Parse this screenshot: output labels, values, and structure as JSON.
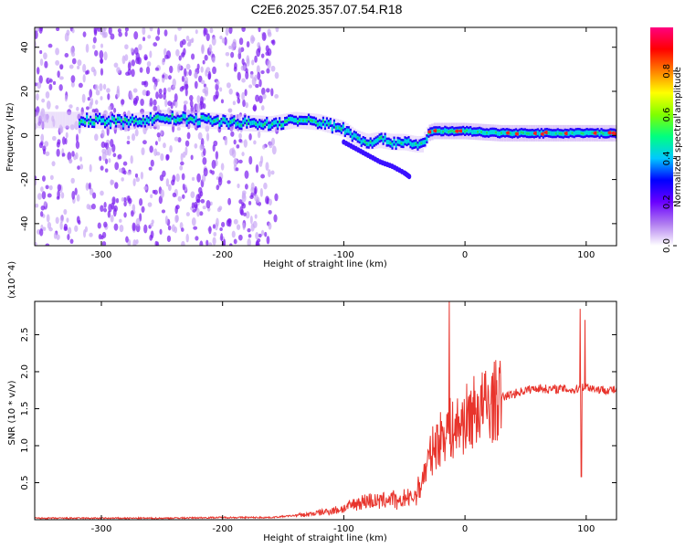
{
  "title": "C2E6.2025.357.07.54.R18",
  "chart_data": [
    {
      "type": "heatmap",
      "xlabel": "Height of straight line (km)",
      "ylabel": "Frequency (Hz)",
      "xlim": [
        -355,
        125
      ],
      "ylim": [
        -50,
        49
      ],
      "xticks": [
        -300,
        -200,
        -100,
        0,
        100
      ],
      "yticks": [
        -40,
        -20,
        0,
        20,
        40
      ],
      "colorbar": {
        "label": "Normalized spectral amplitude",
        "range": [
          0,
          1
        ],
        "ticks": [
          "0.0",
          "0.2",
          "0.4",
          "0.6",
          "0.8"
        ],
        "colors": [
          "#ffffff",
          "#b07cf0",
          "#6a00ff",
          "#0000ff",
          "#00c8ff",
          "#00ff80",
          "#80ff00",
          "#ffff00",
          "#ff8000",
          "#ff0000",
          "#ff0080"
        ]
      },
      "ridge": {
        "x": [
          -310,
          -280,
          -250,
          -220,
          -190,
          -160,
          -140,
          -120,
          -100,
          -90,
          -80,
          -70,
          -60,
          -50,
          -40,
          -35,
          -30,
          -25,
          0,
          30,
          60,
          90,
          125
        ],
        "y": [
          7,
          6,
          8,
          7,
          6,
          5,
          7,
          6,
          3,
          -1,
          -3,
          -2,
          -3,
          -3,
          -4,
          -4,
          1,
          2,
          2,
          1,
          1,
          1,
          1
        ]
      },
      "branch": {
        "x": [
          -100,
          -90,
          -80,
          -70,
          -60,
          -50,
          -45
        ],
        "y": [
          -3,
          -6,
          -9,
          -12,
          -14,
          -17,
          -19
        ]
      }
    },
    {
      "type": "line",
      "xlabel": "Height of straight line (km)",
      "ylabel": "SNR (10 * v/v)",
      "multiplier": "(x10^4)",
      "xlim": [
        -355,
        125
      ],
      "ylim": [
        0,
        2.95
      ],
      "xticks": [
        -300,
        -200,
        -100,
        0,
        100
      ],
      "yticks": [
        0.5,
        1.0,
        1.5,
        2.0,
        2.5
      ],
      "color": "#e8342c",
      "series": [
        {
          "x": [
            -355,
            -300,
            -250,
            -200,
            -160,
            -130,
            -110,
            -100,
            -90,
            -80,
            -70,
            -60,
            -55,
            -50,
            -45,
            -40,
            -35,
            -30,
            -25,
            -20,
            -15,
            -10,
            0,
            10,
            20,
            30,
            40,
            50,
            60,
            70,
            80,
            90,
            95,
            100,
            110,
            125
          ],
          "values": [
            0.02,
            0.02,
            0.02,
            0.03,
            0.03,
            0.07,
            0.12,
            0.15,
            0.22,
            0.26,
            0.24,
            0.3,
            0.2,
            0.3,
            0.28,
            0.35,
            0.55,
            0.8,
            1.0,
            1.1,
            1.25,
            1.2,
            1.35,
            1.5,
            1.55,
            1.65,
            1.7,
            1.75,
            1.78,
            1.76,
            1.77,
            1.75,
            1.78,
            1.8,
            1.76,
            1.75
          ]
        }
      ],
      "spikes": [
        {
          "x": -13,
          "y": 2.95
        },
        {
          "x": 95,
          "y": 2.85
        },
        {
          "x": 96,
          "y": 0.58
        },
        {
          "x": 99,
          "y": 2.7
        }
      ]
    }
  ]
}
